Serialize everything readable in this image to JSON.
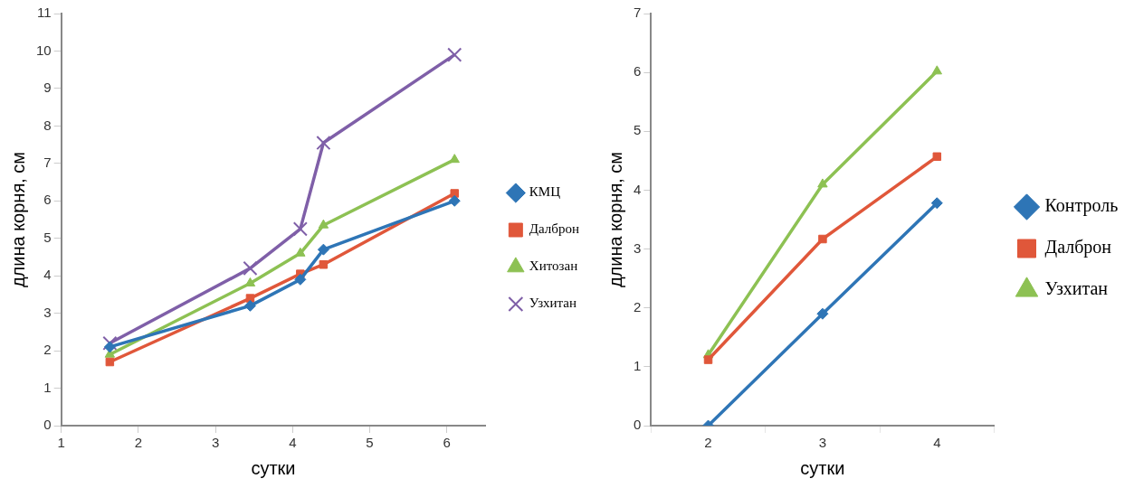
{
  "chart_data": [
    {
      "type": "line",
      "xlabel": "сутки",
      "ylabel": "длина корня, см",
      "x": [
        1.63,
        3.45,
        4.1,
        4.4,
        6.1
      ],
      "xlim": [
        1,
        6.5
      ],
      "xticks": [
        1,
        2,
        3,
        4,
        5,
        6
      ],
      "ylim": [
        0,
        11
      ],
      "yticks": [
        0,
        1,
        2,
        3,
        4,
        5,
        6,
        7,
        8,
        9,
        10,
        11
      ],
      "grid": false,
      "legend": "right",
      "series": [
        {
          "name": "КМЦ",
          "color": "#2e75b6",
          "marker": "diamond",
          "values": [
            2.1,
            3.2,
            3.9,
            4.7,
            6.0
          ]
        },
        {
          "name": "Далброн",
          "color": "#e0573a",
          "marker": "square",
          "values": [
            1.7,
            3.4,
            4.05,
            4.3,
            6.2
          ]
        },
        {
          "name": "Хитозан",
          "color": "#8dc153",
          "marker": "triangle",
          "values": [
            1.9,
            3.8,
            4.6,
            5.35,
            7.1
          ]
        },
        {
          "name": "Узхитан",
          "color": "#7f5fa8",
          "marker": "cross",
          "values": [
            2.2,
            4.2,
            5.25,
            7.55,
            9.9
          ]
        }
      ]
    },
    {
      "type": "line",
      "xlabel": "сутки",
      "ylabel": "длина корня, см",
      "categories": [
        "2",
        "3",
        "4"
      ],
      "ylim": [
        0,
        7
      ],
      "yticks": [
        0,
        1,
        2,
        3,
        4,
        5,
        6,
        7
      ],
      "grid": false,
      "legend": "right",
      "series": [
        {
          "name": "Контроль",
          "color": "#2e75b6",
          "marker": "diamond",
          "values": [
            0,
            1.9,
            3.78
          ]
        },
        {
          "name": "Далброн",
          "color": "#e0573a",
          "marker": "square",
          "values": [
            1.12,
            3.17,
            4.57
          ]
        },
        {
          "name": "Узхитан",
          "color": "#8dc153",
          "marker": "triangle",
          "values": [
            1.2,
            4.1,
            6.02
          ]
        }
      ]
    }
  ]
}
